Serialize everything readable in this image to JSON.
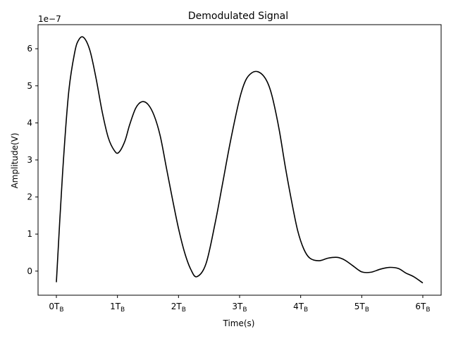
{
  "chart_data": {
    "type": "line",
    "title": "Demodulated Signal",
    "xlabel": "Time(s)",
    "ylabel": "Amplitude(V)",
    "offset_text": "1e−7",
    "x_unit": "T_B",
    "xlim": [
      -0.3,
      6.3
    ],
    "ylim": [
      -0.65,
      6.65
    ],
    "y_scale_factor": 1e-07,
    "grid": false,
    "x_ticks": [
      {
        "value": 0,
        "label": "0T",
        "sub": "B"
      },
      {
        "value": 1,
        "label": "1T",
        "sub": "B"
      },
      {
        "value": 2,
        "label": "2T",
        "sub": "B"
      },
      {
        "value": 3,
        "label": "3T",
        "sub": "B"
      },
      {
        "value": 4,
        "label": "4T",
        "sub": "B"
      },
      {
        "value": 5,
        "label": "5T",
        "sub": "B"
      },
      {
        "value": 6,
        "label": "6T",
        "sub": "B"
      }
    ],
    "y_ticks": [
      {
        "value": 0,
        "label": "0"
      },
      {
        "value": 1,
        "label": "1"
      },
      {
        "value": 2,
        "label": "2"
      },
      {
        "value": 3,
        "label": "3"
      },
      {
        "value": 4,
        "label": "4"
      },
      {
        "value": 5,
        "label": "5"
      },
      {
        "value": 6,
        "label": "6"
      }
    ],
    "series": [
      {
        "color": "#000000",
        "x": [
          0,
          0.1,
          0.2,
          0.3,
          0.37,
          0.45,
          0.55,
          0.65,
          0.75,
          0.85,
          0.95,
          1.02,
          1.12,
          1.2,
          1.3,
          1.4,
          1.5,
          1.6,
          1.7,
          1.8,
          1.9,
          2.0,
          2.1,
          2.2,
          2.3,
          2.45,
          2.6,
          2.72,
          2.85,
          3.0,
          3.1,
          3.2,
          3.3,
          3.4,
          3.48,
          3.55,
          3.65,
          3.75,
          3.85,
          3.95,
          4.05,
          4.15,
          4.3,
          4.45,
          4.6,
          4.72,
          4.85,
          5.0,
          5.15,
          5.3,
          5.45,
          5.6,
          5.72,
          5.85,
          6.0
        ],
        "y": [
          -0.3,
          2.6,
          4.8,
          5.9,
          6.25,
          6.3,
          5.95,
          5.2,
          4.3,
          3.6,
          3.25,
          3.2,
          3.5,
          3.95,
          4.4,
          4.57,
          4.5,
          4.2,
          3.65,
          2.8,
          1.95,
          1.15,
          0.5,
          0.05,
          -0.15,
          0.2,
          1.3,
          2.35,
          3.5,
          4.65,
          5.15,
          5.35,
          5.38,
          5.25,
          5.0,
          4.6,
          3.8,
          2.8,
          1.9,
          1.1,
          0.6,
          0.35,
          0.28,
          0.35,
          0.37,
          0.3,
          0.15,
          -0.02,
          -0.03,
          0.05,
          0.1,
          0.07,
          -0.05,
          -0.15,
          -0.32
        ]
      }
    ]
  }
}
